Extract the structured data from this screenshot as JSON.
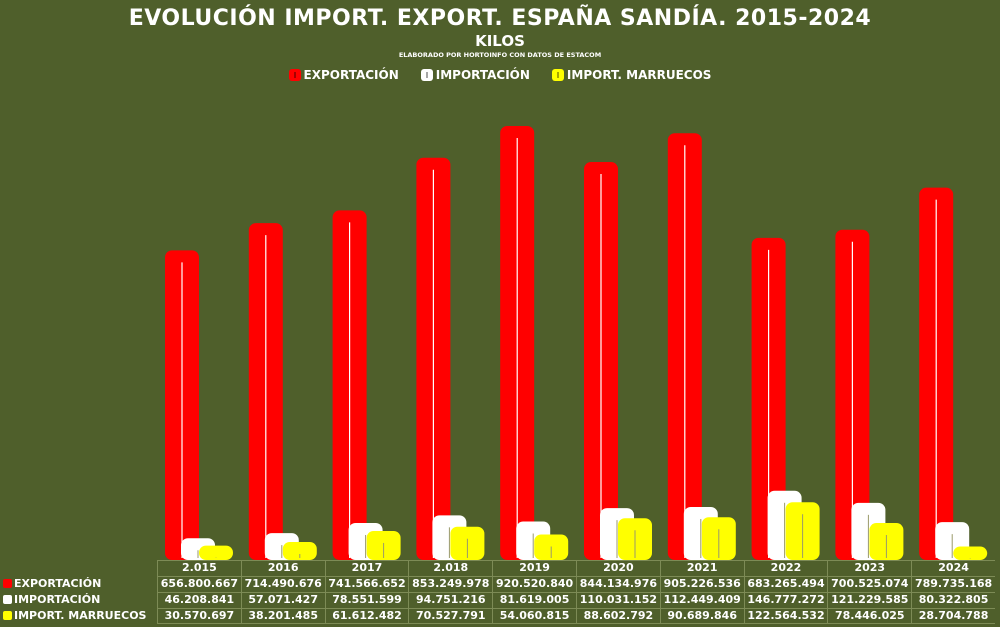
{
  "chart_data": {
    "type": "bar",
    "title": "EVOLUCIÓN IMPORT. EXPORT. ESPAÑA SANDÍA.  2015-2024",
    "subtitle": "KILOS",
    "note": "ELABORADO POR HORTOINFO CON DATOS DE ESTACOM",
    "categories": [
      "2.015",
      "2016",
      "2017",
      "2.018",
      "2019",
      "2020",
      "2021",
      "2022",
      "2023",
      "2024"
    ],
    "series": [
      {
        "name": "EXPORTACIÓN",
        "color": "#ff0000",
        "values": [
          656800667,
          714490676,
          741566652,
          853249978,
          920520840,
          844134976,
          905226536,
          683265494,
          700525074,
          789735168
        ],
        "labels": [
          "656.800.667",
          "714.490.676",
          "741.566.652",
          "853.249.978",
          "920.520.840",
          "844.134.976",
          "905.226.536",
          "683.265.494",
          "700.525.074",
          "789.735.168"
        ]
      },
      {
        "name": "IMPORTACIÓN",
        "color": "#ffffff",
        "values": [
          46208841,
          57071427,
          78551599,
          94751216,
          81619005,
          110031152,
          112449409,
          146777272,
          121229585,
          80322805
        ],
        "labels": [
          "46.208.841",
          "57.071.427",
          "78.551.599",
          "94.751.216",
          "81.619.005",
          "110.031.152",
          "112.449.409",
          "146.777.272",
          "121.229.585",
          "80.322.805"
        ]
      },
      {
        "name": "IMPORT. MARRUECOS",
        "color": "#ffff00",
        "values": [
          30570697,
          38201485,
          61612482,
          70527791,
          54060815,
          88602792,
          90689846,
          122564532,
          78446025,
          28704788
        ],
        "labels": [
          "30.570.697",
          "38.201.485",
          "61.612.482",
          "70.527.791",
          "54.060.815",
          "88.602.792",
          "90.689.846",
          "122.564.532",
          "78.446.025",
          "28.704.788"
        ]
      }
    ],
    "legend_position": "top-center",
    "data_table": true,
    "grid": false
  }
}
